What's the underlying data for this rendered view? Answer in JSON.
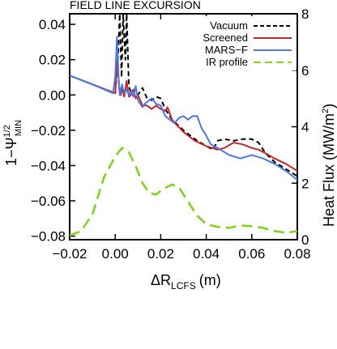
{
  "chart_data": {
    "type": "line",
    "title": "FIELD LINE EXCURSION",
    "xlabel": "ΔR",
    "xlabel_sub": "LCFS",
    "xlabel_unit": "(m)",
    "ylabel": "1−Ψ",
    "ylabel_sup": "1/2",
    "ylabel_sub": "MIN",
    "y2label": "Heat Flux  (MW/m",
    "y2label_sup": "2",
    "y2label_end": ")",
    "xlim": [
      -0.02,
      0.08
    ],
    "ylim": [
      -0.082,
      0.046
    ],
    "y2lim": [
      0,
      8
    ],
    "xticks": [
      -0.02,
      0.0,
      0.02,
      0.04,
      0.06,
      0.08
    ],
    "xtick_labels": [
      "−0.02",
      "0.00",
      "0.02",
      "0.04",
      "0.06",
      "0.08"
    ],
    "yticks": [
      -0.08,
      -0.06,
      -0.04,
      -0.02,
      0.0,
      0.02,
      0.04
    ],
    "ytick_labels": [
      "−0.08",
      "−0.06",
      "−0.04",
      "−0.02",
      "0.00",
      "0.02",
      "0.04"
    ],
    "y2ticks": [
      0,
      2,
      4,
      6,
      8
    ],
    "y2tick_labels": [
      "0",
      "2",
      "4",
      "6",
      "8"
    ],
    "grid": false,
    "legend_position": "top-right",
    "series": [
      {
        "name": "Vacuum",
        "color": "#000000",
        "style": "dashed",
        "axis": "left",
        "points": [
          [
            -0.02,
            0.011
          ],
          [
            -0.01,
            0.006
          ],
          [
            0.0,
            0.001
          ],
          [
            0.0012,
            0.02
          ],
          [
            0.002,
            0.046
          ],
          [
            0.0028,
            0.01
          ],
          [
            0.0035,
            0.046
          ],
          [
            0.0045,
            0.02
          ],
          [
            0.005,
            0.046
          ],
          [
            0.006,
            0.005
          ],
          [
            0.007,
            0.001
          ],
          [
            0.008,
            0.003
          ],
          [
            0.01,
            0.0
          ],
          [
            0.012,
            0.004
          ],
          [
            0.014,
            -0.002
          ],
          [
            0.016,
            -0.003
          ],
          [
            0.018,
            -0.001
          ],
          [
            0.02,
            -0.002
          ],
          [
            0.022,
            -0.008
          ],
          [
            0.025,
            -0.014
          ],
          [
            0.03,
            -0.02
          ],
          [
            0.035,
            -0.025
          ],
          [
            0.04,
            -0.029
          ],
          [
            0.043,
            -0.031
          ],
          [
            0.045,
            -0.026
          ],
          [
            0.048,
            -0.025
          ],
          [
            0.052,
            -0.026
          ],
          [
            0.056,
            -0.025
          ],
          [
            0.06,
            -0.025
          ],
          [
            0.063,
            -0.027
          ],
          [
            0.066,
            -0.033
          ],
          [
            0.07,
            -0.038
          ],
          [
            0.075,
            -0.042
          ],
          [
            0.08,
            -0.046
          ]
        ]
      },
      {
        "name": "Screened",
        "color": "#c0282a",
        "style": "solid",
        "axis": "left",
        "points": [
          [
            -0.02,
            0.011
          ],
          [
            -0.01,
            0.006
          ],
          [
            0.0,
            0.001
          ],
          [
            0.001,
            0.02
          ],
          [
            0.0018,
            0.003
          ],
          [
            0.0025,
            0.0
          ],
          [
            0.003,
            0.004
          ],
          [
            0.004,
            -0.001
          ],
          [
            0.005,
            0.008
          ],
          [
            0.006,
            -0.001
          ],
          [
            0.007,
            0.0
          ],
          [
            0.008,
            0.003
          ],
          [
            0.009,
            -0.002
          ],
          [
            0.01,
            0.0
          ],
          [
            0.011,
            -0.003
          ],
          [
            0.012,
            -0.006
          ],
          [
            0.014,
            -0.006
          ],
          [
            0.016,
            -0.008
          ],
          [
            0.018,
            -0.006
          ],
          [
            0.02,
            -0.008
          ],
          [
            0.022,
            -0.009
          ],
          [
            0.023,
            -0.007
          ],
          [
            0.025,
            -0.014
          ],
          [
            0.027,
            -0.017
          ],
          [
            0.03,
            -0.021
          ],
          [
            0.035,
            -0.026
          ],
          [
            0.04,
            -0.029
          ],
          [
            0.045,
            -0.031
          ],
          [
            0.048,
            -0.03
          ],
          [
            0.052,
            -0.027
          ],
          [
            0.056,
            -0.028
          ],
          [
            0.06,
            -0.03
          ],
          [
            0.063,
            -0.031
          ],
          [
            0.066,
            -0.033
          ],
          [
            0.07,
            -0.036
          ],
          [
            0.075,
            -0.039
          ],
          [
            0.08,
            -0.043
          ]
        ]
      },
      {
        "name": "MARS−F",
        "color": "#4a78e0",
        "style": "solid",
        "axis": "left",
        "points": [
          [
            -0.02,
            0.011
          ],
          [
            -0.01,
            0.006
          ],
          [
            -0.001,
            0.001
          ],
          [
            0.0,
            0.01
          ],
          [
            0.0008,
            0.033
          ],
          [
            0.0015,
            0.01
          ],
          [
            0.002,
            0.0
          ],
          [
            0.003,
            0.006
          ],
          [
            0.004,
            0.001
          ],
          [
            0.005,
            0.003
          ],
          [
            0.006,
            0.0
          ],
          [
            0.007,
            0.002
          ],
          [
            0.008,
            -0.001
          ],
          [
            0.009,
            0.005
          ],
          [
            0.01,
            -0.003
          ],
          [
            0.011,
            -0.005
          ],
          [
            0.012,
            -0.007
          ],
          [
            0.013,
            -0.005
          ],
          [
            0.014,
            -0.004
          ],
          [
            0.016,
            -0.002
          ],
          [
            0.018,
            -0.005
          ],
          [
            0.02,
            -0.006
          ],
          [
            0.022,
            -0.012
          ],
          [
            0.024,
            -0.014
          ],
          [
            0.026,
            -0.016
          ],
          [
            0.028,
            -0.013
          ],
          [
            0.03,
            -0.012
          ],
          [
            0.032,
            -0.014
          ],
          [
            0.034,
            -0.012
          ],
          [
            0.036,
            -0.012
          ],
          [
            0.038,
            -0.019
          ],
          [
            0.04,
            -0.023
          ],
          [
            0.042,
            -0.028
          ],
          [
            0.045,
            -0.03
          ],
          [
            0.05,
            -0.034
          ],
          [
            0.055,
            -0.036
          ],
          [
            0.06,
            -0.034
          ],
          [
            0.065,
            -0.036
          ],
          [
            0.07,
            -0.039
          ],
          [
            0.075,
            -0.043
          ],
          [
            0.08,
            -0.048
          ]
        ]
      },
      {
        "name": "IR profile",
        "color": "#7ed321",
        "style": "dashed",
        "axis": "right",
        "points": [
          [
            -0.02,
            0.15
          ],
          [
            -0.015,
            0.3
          ],
          [
            -0.01,
            0.9
          ],
          [
            -0.005,
            2.2
          ],
          [
            0.0,
            2.95
          ],
          [
            0.003,
            3.25
          ],
          [
            0.006,
            3.1
          ],
          [
            0.009,
            2.6
          ],
          [
            0.012,
            2.0
          ],
          [
            0.015,
            1.65
          ],
          [
            0.018,
            1.6
          ],
          [
            0.021,
            1.8
          ],
          [
            0.025,
            1.95
          ],
          [
            0.028,
            1.85
          ],
          [
            0.032,
            1.35
          ],
          [
            0.036,
            0.85
          ],
          [
            0.04,
            0.55
          ],
          [
            0.045,
            0.45
          ],
          [
            0.05,
            0.42
          ],
          [
            0.055,
            0.5
          ],
          [
            0.06,
            0.48
          ],
          [
            0.065,
            0.42
          ],
          [
            0.07,
            0.3
          ],
          [
            0.075,
            0.25
          ],
          [
            0.08,
            0.3
          ]
        ]
      }
    ]
  }
}
